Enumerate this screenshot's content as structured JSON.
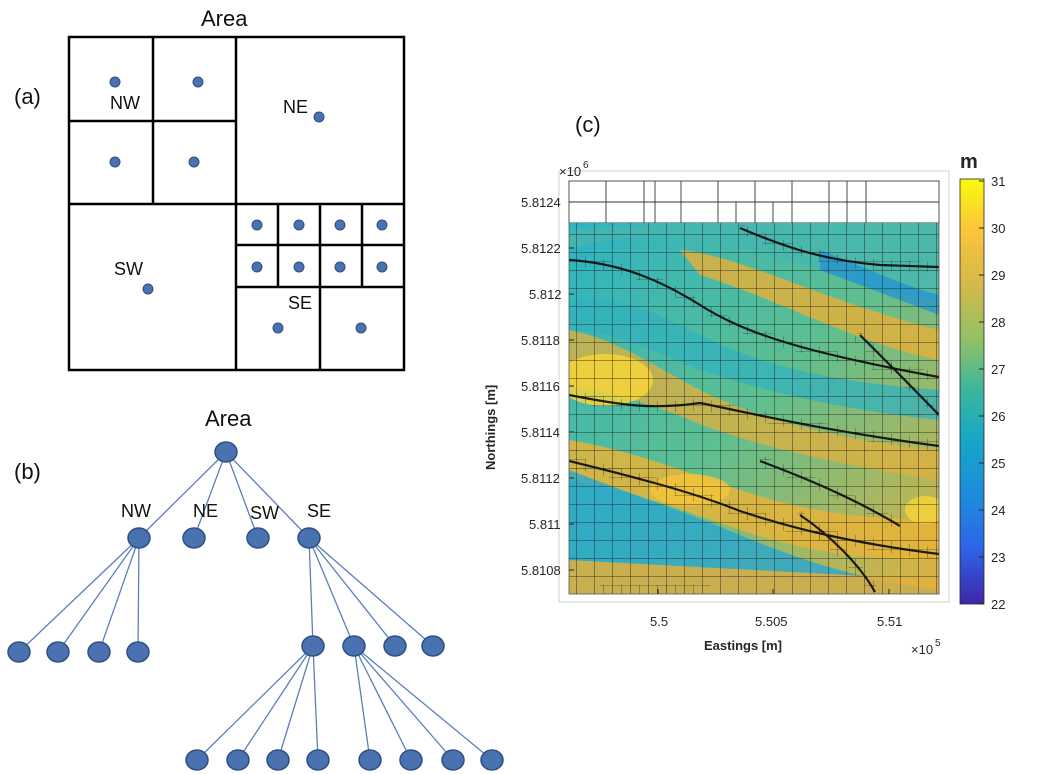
{
  "panel_a": {
    "label": "(a)",
    "title": "Area",
    "quadrants": {
      "nw": "NW",
      "ne": "NE",
      "sw": "SW",
      "se": "SE"
    }
  },
  "panel_b": {
    "label": "(b)",
    "root": "Area",
    "branches": [
      "NW",
      "NE",
      "SW",
      "SE"
    ]
  },
  "panel_c": {
    "label": "(c)",
    "colorbar_title": "m",
    "colorbar_ticks": [
      "31",
      "30",
      "29",
      "28",
      "27",
      "26",
      "25",
      "24",
      "23",
      "22"
    ],
    "y_exponent": "×10",
    "y_exponent_power": "6",
    "x_exponent": "×10",
    "x_exponent_power": "5",
    "ylabel": "Northings [m]",
    "xlabel": "Eastings [m]",
    "y_ticks": [
      "5.8124",
      "5.8122",
      "5.812",
      "5.8118",
      "5.8116",
      "5.8114",
      "5.8112",
      "5.811",
      "5.8108"
    ],
    "x_ticks": [
      "5.5",
      "5.505",
      "5.51"
    ],
    "colors": {
      "low": "#3e26a8",
      "mid": "#1fa7c9",
      "high": "#f9fb0e"
    }
  }
}
